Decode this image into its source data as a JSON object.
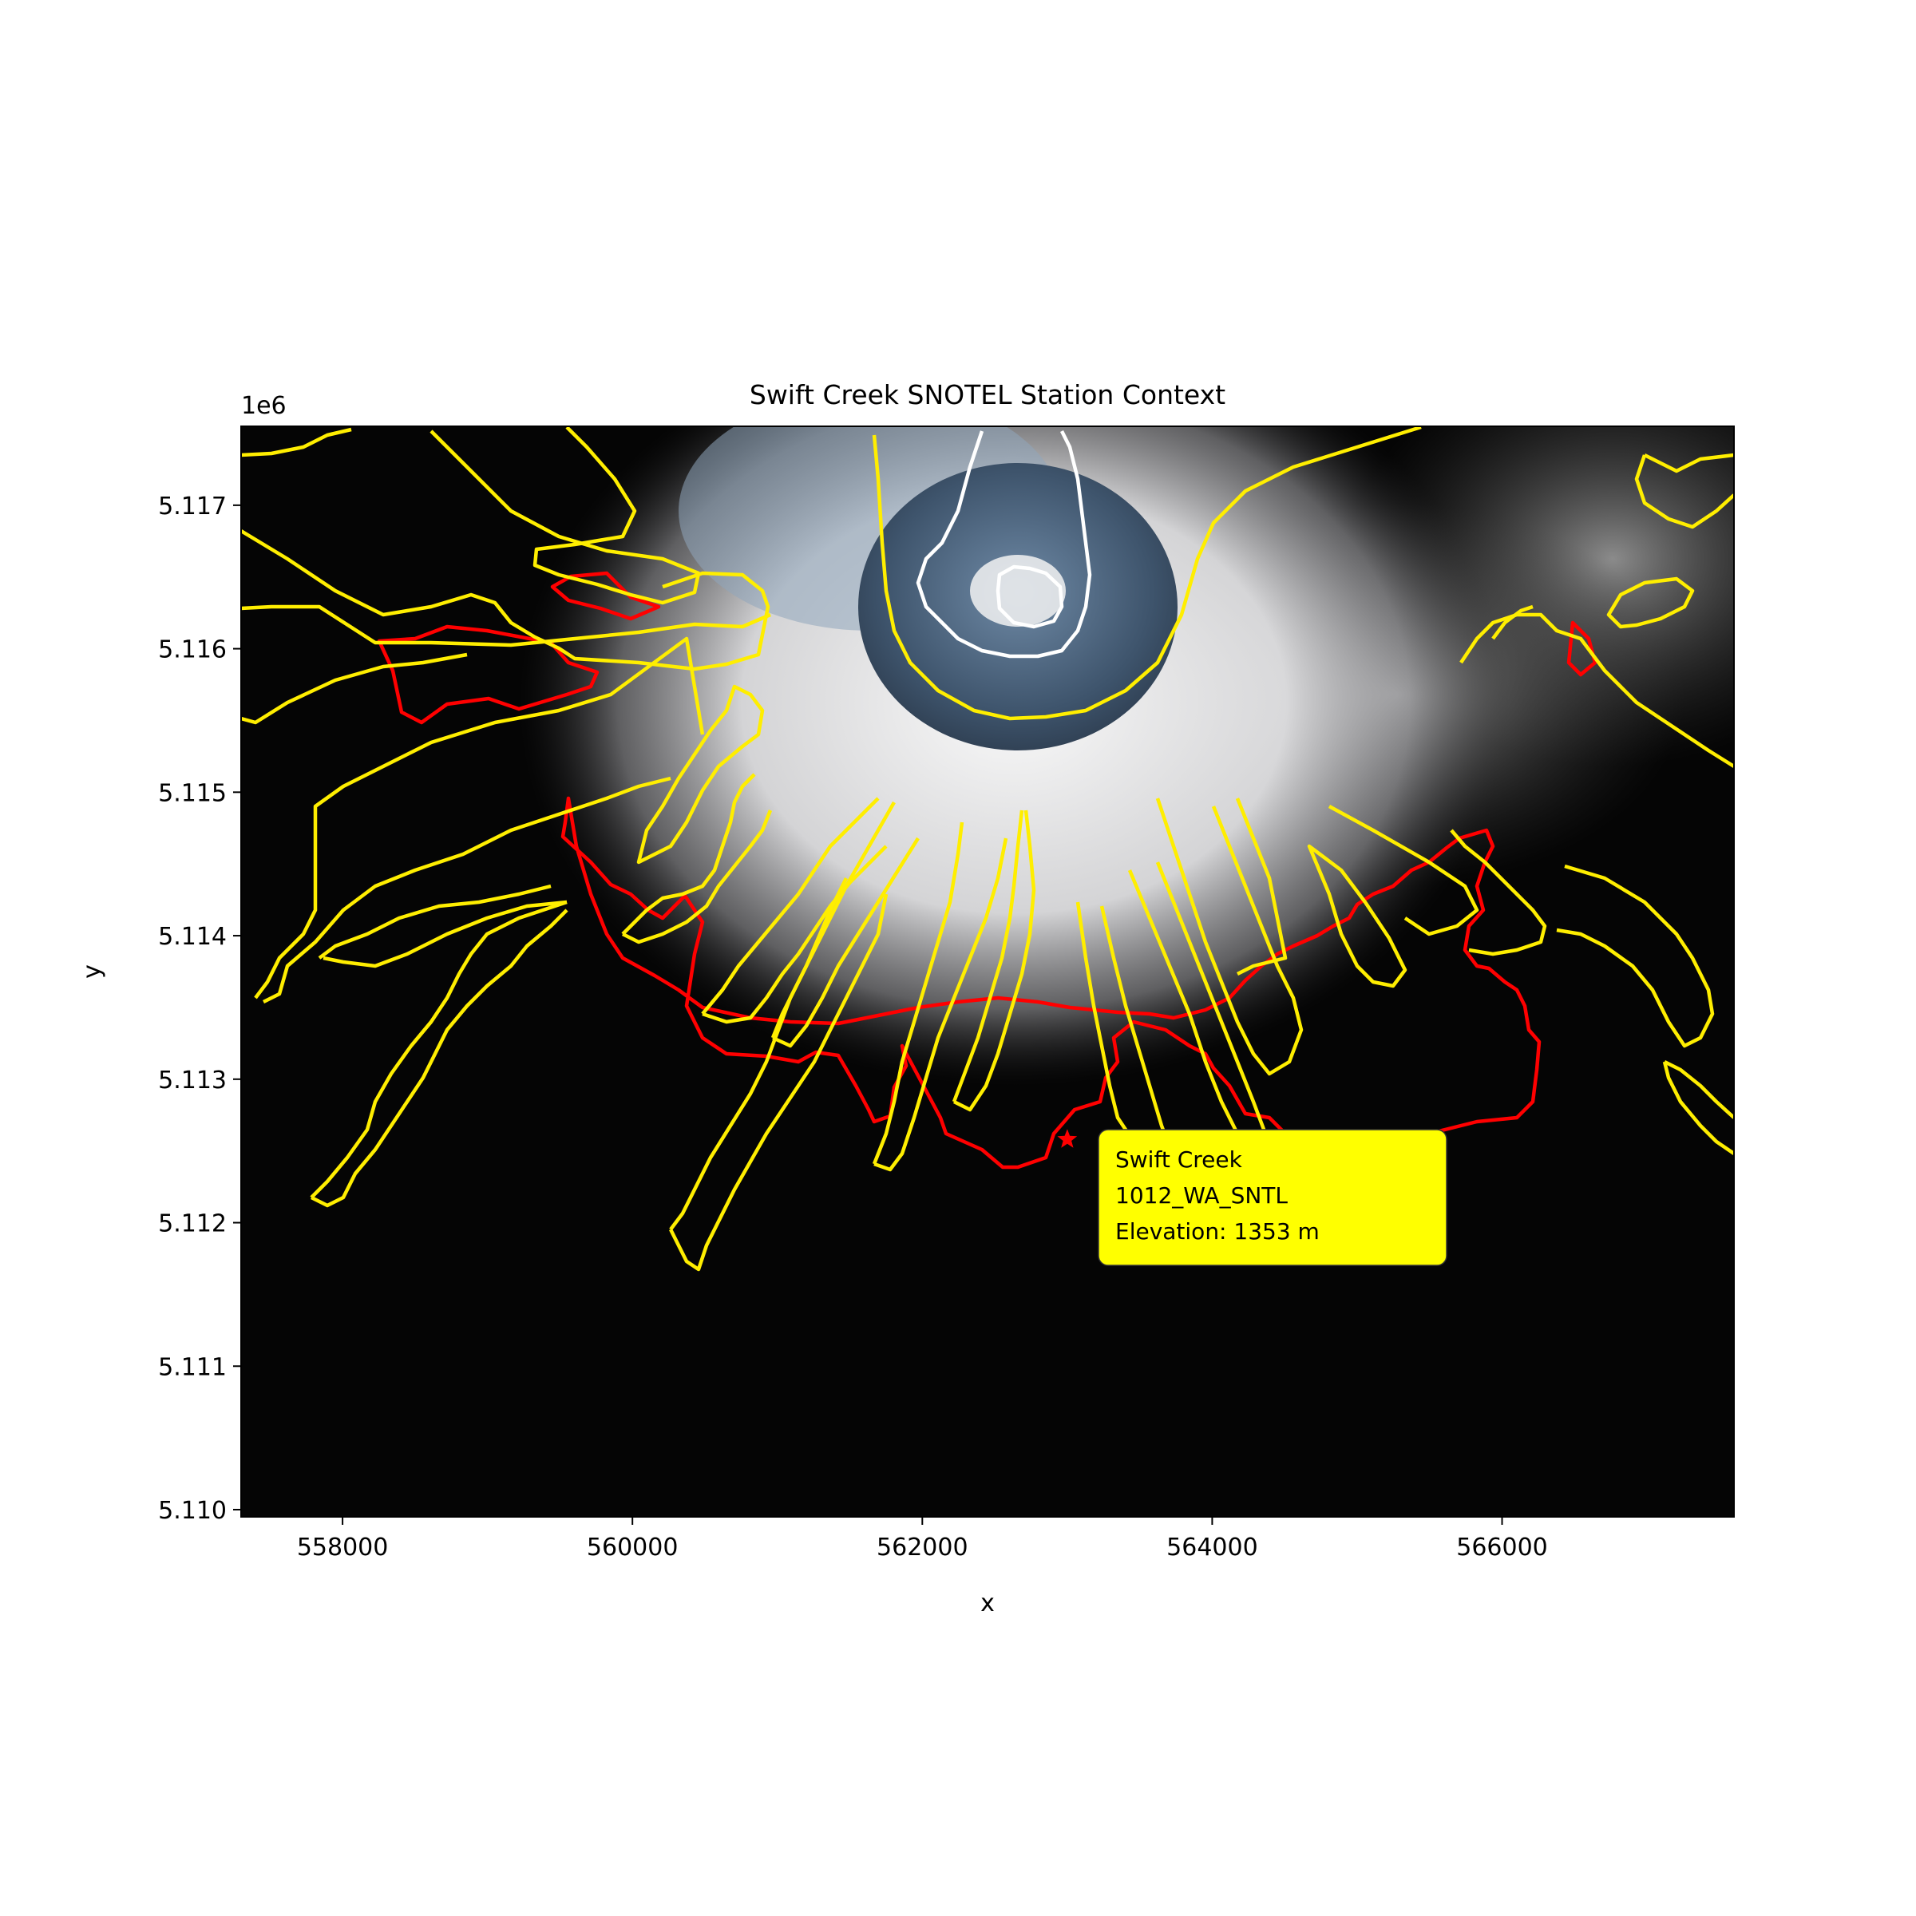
{
  "chart_data": {
    "type": "map",
    "title": "Swift Creek SNOTEL Station Context",
    "xlabel": "x",
    "ylabel": "y",
    "y_offset_label": "1e6",
    "xlim": [
      557300,
      567600
    ],
    "ylim": [
      5.10995,
      5.11755
    ],
    "x_ticks": [
      558000,
      560000,
      562000,
      564000,
      566000
    ],
    "x_tick_labels": [
      "558000",
      "560000",
      "562000",
      "564000",
      "566000"
    ],
    "y_ticks": [
      5.11,
      5.111,
      5.112,
      5.113,
      5.114,
      5.115,
      5.116,
      5.117
    ],
    "y_tick_labels": [
      "5.110",
      "5.111",
      "5.112",
      "5.113",
      "5.114",
      "5.115",
      "5.116",
      "5.117"
    ],
    "basemap": "satellite imagery of a snow-covered volcano with summit crater",
    "contour_colors": {
      "red": "#ff0000",
      "yellow": "#ffee00",
      "white": "#ffffff"
    },
    "station": {
      "x": 563000,
      "y": 5.11258,
      "marker": "star",
      "color": "#ff0000",
      "name": "Swift Creek",
      "id": "1012_WA_SNTL",
      "elevation_label": "Elevation: 1353 m"
    },
    "annotation_box_color": "#ffff00",
    "grid": false
  }
}
